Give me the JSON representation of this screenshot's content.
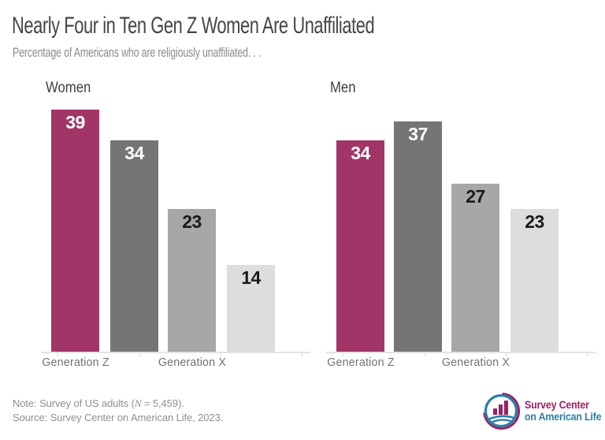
{
  "chart_data": {
    "type": "bar",
    "title": "Nearly Four in Ten Gen Z Women Are Unaffiliated",
    "subtitle": "Percentage of Americans who are religiously unaffiliated. . .",
    "unit": "percent",
    "ylim": [
      0,
      39
    ],
    "gridlines": false,
    "value_labels_position": "inside-top",
    "panels": [
      {
        "label": "Women",
        "values": [
          39,
          34,
          23,
          14
        ],
        "x_tick_labels": [
          {
            "text": "Generation Z",
            "bar_index": 0
          },
          {
            "text": "Generation X",
            "bar_index": 2
          }
        ]
      },
      {
        "label": "Men",
        "values": [
          34,
          37,
          27,
          23
        ],
        "x_tick_labels": [
          {
            "text": "Generation Z",
            "bar_index": 0
          },
          {
            "text": "Generation X",
            "bar_index": 2
          }
        ]
      }
    ],
    "bar_colors": [
      "#a23568",
      "#767476",
      "#a8a6a8",
      "#dedddd"
    ],
    "value_label_colors": [
      "#ffffff",
      "#ffffff",
      "#1a1a1a",
      "#1a1a1a"
    ]
  },
  "footer": {
    "note_prefix": "Note: Survey of US adults (",
    "note_nvar": "N",
    "note_suffix": " = 5,459).",
    "source": "Source: Survey Center on American Life, 2023."
  },
  "logo": {
    "line1": "Survey Center",
    "line2": "on American Life",
    "magenta": "#9e2063",
    "blue": "#2b7fa8"
  }
}
